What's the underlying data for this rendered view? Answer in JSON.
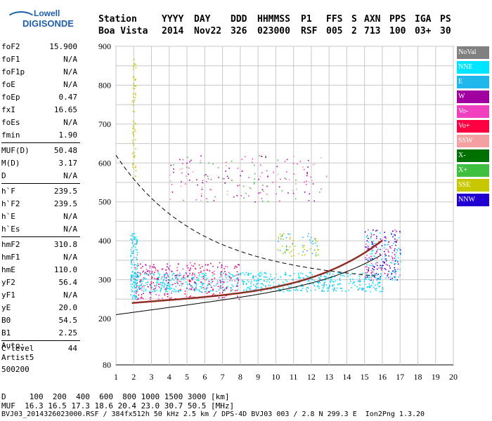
{
  "logo": {
    "line1": "Lowell",
    "line2": "DIGISONDE"
  },
  "header": {
    "row1": [
      "Station",
      "YYYY",
      "DAY",
      "DDD",
      "HHMMSS",
      "P1",
      "FFS",
      "S",
      "AXN",
      "PPS",
      "IGA",
      "PS"
    ],
    "row2": [
      "Boa Vista",
      "2014",
      "Nov22",
      "326",
      "023000",
      "RSF",
      "005",
      "2",
      "713",
      "100",
      "03+",
      "30"
    ]
  },
  "params": {
    "g1": [
      [
        "foF2",
        "15.900"
      ],
      [
        "foF1",
        "N/A"
      ],
      [
        "foF1p",
        "N/A"
      ],
      [
        "foE",
        "N/A"
      ],
      [
        "foEp",
        "0.47"
      ],
      [
        "fxI",
        "16.65"
      ],
      [
        "foEs",
        "N/A"
      ],
      [
        "fmin",
        "1.90"
      ]
    ],
    "g2": [
      [
        "MUF(D)",
        "50.48"
      ],
      [
        "M(D)",
        "3.17"
      ],
      [
        "D",
        "N/A"
      ]
    ],
    "g3": [
      [
        "h`F",
        "239.5"
      ],
      [
        "h`F2",
        "239.5"
      ],
      [
        "h`E",
        "N/A"
      ],
      [
        "h`Es",
        "N/A"
      ]
    ],
    "g4": [
      [
        "hmF2",
        "310.8"
      ],
      [
        "hmF1",
        "N/A"
      ],
      [
        "hmE",
        "110.0"
      ],
      [
        "yF2",
        "56.4"
      ],
      [
        "yF1",
        "N/A"
      ],
      [
        "yE",
        "20.0"
      ],
      [
        "B0",
        "54.5"
      ],
      [
        "B1",
        "2.25"
      ]
    ],
    "g5": [
      [
        "C-level",
        "44"
      ]
    ]
  },
  "auto": {
    "line1": "Auto:",
    "line2": "Artist5",
    "line3": "500200"
  },
  "legend": [
    {
      "label": "NoVal",
      "color": "#808080"
    },
    {
      "label": "NNE",
      "color": "#00e5ff"
    },
    {
      "label": "E",
      "color": "#20b8ec"
    },
    {
      "label": "W",
      "color": "#a000a0"
    },
    {
      "label": "Vo-",
      "color": "#f040c0"
    },
    {
      "label": "Vo+",
      "color": "#ff0040"
    },
    {
      "label": "SSW",
      "color": "#f4a0a0"
    },
    {
      "label": "X-",
      "color": "#007000"
    },
    {
      "label": "X+",
      "color": "#40c040"
    },
    {
      "label": "SSE",
      "color": "#c8c800"
    },
    {
      "label": "NNW",
      "color": "#2000d0"
    }
  ],
  "axes": {
    "x_ticks": [
      "1",
      "2",
      "3",
      "4",
      "5",
      "6",
      "7",
      "8",
      "9",
      "10",
      "11",
      "12",
      "13",
      "14",
      "15",
      "16",
      "17",
      "18",
      "19",
      "20"
    ],
    "y_ticks": [
      "80",
      "200",
      "300",
      "400",
      "500",
      "600",
      "700",
      "800",
      "900"
    ]
  },
  "footer": {
    "d_line": "D     100  200  400  600  800 1000 1500 3000 [km]",
    "muf_line": "MUF  16.3 16.5 17.3 18.6 20.4 23.0 30.7 50.5 [MHz]",
    "file_line": "BVJ03_2014326023000.RSF / 384fx512h 50 kHz 2.5 km / DPS-4D BVJ03 003 / 2.8 N 299.3 E  Ion2Png 1.3.20"
  }
}
